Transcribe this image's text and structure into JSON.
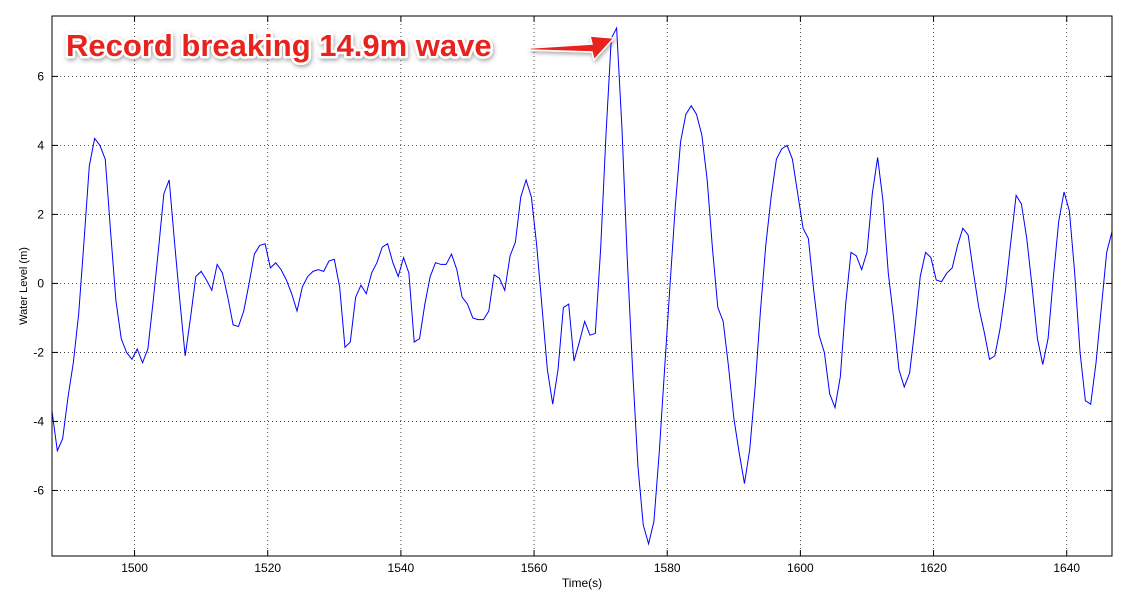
{
  "chart_data": {
    "type": "line",
    "annotation": "Record breaking 14.9m wave",
    "xlabel": "Time(s)",
    "ylabel": "Water Level (m)",
    "color": "#0000ff",
    "grid": true,
    "xlim": [
      1487.6,
      1646.8
    ],
    "ylim": [
      -7.9,
      7.75
    ],
    "xticks": [
      1500,
      1520,
      1540,
      1560,
      1580,
      1600,
      1620,
      1640
    ],
    "yticks": [
      -6,
      -4,
      -2,
      0,
      2,
      4,
      6
    ],
    "x": [
      1487.6,
      1488.4,
      1489.2,
      1490,
      1490.8,
      1491.6,
      1492.4,
      1493.2,
      1494,
      1494.8,
      1495.6,
      1496.4,
      1497.2,
      1498,
      1498.8,
      1499.6,
      1500.4,
      1501.2,
      1502,
      1502.8,
      1503.6,
      1504.4,
      1505.2,
      1506,
      1506.8,
      1507.6,
      1508.4,
      1509.2,
      1510,
      1510.8,
      1511.6,
      1512.4,
      1513.2,
      1514,
      1514.8,
      1515.6,
      1516.4,
      1517.2,
      1518,
      1518.8,
      1519.6,
      1520.4,
      1521.2,
      1522,
      1522.8,
      1523.6,
      1524.4,
      1525.2,
      1526,
      1526.8,
      1527.6,
      1528.4,
      1529.2,
      1530,
      1530.8,
      1531.6,
      1532.4,
      1533.2,
      1534,
      1534.8,
      1535.6,
      1536.4,
      1537.2,
      1538,
      1538.8,
      1539.6,
      1540.4,
      1541.2,
      1542,
      1542.8,
      1543.6,
      1544.4,
      1545.2,
      1546,
      1546.8,
      1547.6,
      1548.4,
      1549.2,
      1550,
      1550.8,
      1551.6,
      1552.4,
      1553.2,
      1554,
      1554.8,
      1555.6,
      1556.4,
      1557.2,
      1558,
      1558.8,
      1559.6,
      1560.4,
      1561.2,
      1562,
      1562.8,
      1563.6,
      1564.4,
      1565.2,
      1566,
      1566.8,
      1567.6,
      1568.4,
      1569.2,
      1570,
      1570.8,
      1571.6,
      1572.4,
      1573.2,
      1574,
      1574.8,
      1575.6,
      1576.4,
      1577.2,
      1578,
      1578.8,
      1579.6,
      1580.4,
      1581.2,
      1582,
      1582.8,
      1583.6,
      1584.4,
      1585.2,
      1586,
      1586.8,
      1587.6,
      1588.4,
      1589.2,
      1590,
      1590.8,
      1591.6,
      1592.4,
      1593.2,
      1594,
      1594.8,
      1595.6,
      1596.4,
      1597.2,
      1598,
      1598.8,
      1599.6,
      1600.4,
      1601.2,
      1602,
      1602.8,
      1603.6,
      1604.4,
      1605.2,
      1606,
      1606.8,
      1607.6,
      1608.4,
      1609.2,
      1610,
      1610.8,
      1611.6,
      1612.4,
      1613.2,
      1614,
      1614.8,
      1615.6,
      1616.4,
      1617.2,
      1618,
      1618.8,
      1619.6,
      1620.4,
      1621.2,
      1622,
      1622.8,
      1623.6,
      1624.4,
      1625.2,
      1626,
      1626.8,
      1627.6,
      1628.4,
      1629.2,
      1630,
      1630.8,
      1631.6,
      1632.4,
      1633.2,
      1634,
      1634.8,
      1635.6,
      1636.4,
      1637.2,
      1638,
      1638.8,
      1639.6,
      1640.4,
      1641.2,
      1642,
      1642.8,
      1643.6,
      1644.4,
      1645.2,
      1646,
      1646.8
    ],
    "values": [
      -3.7,
      -4.85,
      -4.5,
      -3.3,
      -2.3,
      -0.9,
      1.2,
      3.4,
      4.2,
      4.0,
      3.6,
      1.5,
      -0.5,
      -1.6,
      -2.0,
      -2.2,
      -1.9,
      -2.3,
      -1.9,
      -0.5,
      1.0,
      2.6,
      3.0,
      1.2,
      -0.5,
      -2.1,
      -1.0,
      0.2,
      0.35,
      0.1,
      -0.2,
      0.55,
      0.3,
      -0.4,
      -1.2,
      -1.25,
      -0.8,
      0.0,
      0.85,
      1.1,
      1.15,
      0.45,
      0.6,
      0.4,
      0.1,
      -0.3,
      -0.8,
      -0.1,
      0.2,
      0.35,
      0.4,
      0.35,
      0.65,
      0.7,
      -0.1,
      -1.85,
      -1.7,
      -0.4,
      -0.05,
      -0.3,
      0.3,
      0.6,
      1.05,
      1.15,
      0.6,
      0.2,
      0.75,
      0.3,
      -1.7,
      -1.6,
      -0.6,
      0.2,
      0.6,
      0.55,
      0.55,
      0.85,
      0.4,
      -0.4,
      -0.6,
      -1.0,
      -1.05,
      -1.05,
      -0.8,
      0.25,
      0.15,
      -0.2,
      0.8,
      1.2,
      2.5,
      3.0,
      2.5,
      1.1,
      -0.7,
      -2.5,
      -3.5,
      -2.5,
      -0.7,
      -0.6,
      -2.25,
      -1.7,
      -1.1,
      -1.5,
      -1.45,
      1.0,
      4.3,
      7.1,
      7.4,
      4.5,
      0.7,
      -2.5,
      -5.3,
      -7.0,
      -7.55,
      -6.9,
      -4.9,
      -2.5,
      -0.1,
      2.2,
      4.1,
      4.9,
      5.15,
      4.9,
      4.3,
      3.0,
      1.0,
      -0.7,
      -1.1,
      -2.4,
      -3.9,
      -4.9,
      -5.8,
      -4.8,
      -3.0,
      -0.8,
      1.1,
      2.5,
      3.6,
      3.9,
      4.0,
      3.6,
      2.6,
      1.6,
      1.3,
      -0.2,
      -1.5,
      -2.0,
      -3.2,
      -3.6,
      -2.7,
      -0.6,
      0.9,
      0.8,
      0.4,
      0.9,
      2.6,
      3.65,
      2.4,
      0.3,
      -1.0,
      -2.5,
      -3.0,
      -2.6,
      -1.3,
      0.2,
      0.9,
      0.75,
      0.1,
      0.05,
      0.3,
      0.45,
      1.1,
      1.6,
      1.4,
      0.3,
      -0.7,
      -1.4,
      -2.2,
      -2.1,
      -1.3,
      -0.2,
      1.2,
      2.55,
      2.3,
      1.3,
      -0.1,
      -1.6,
      -2.35,
      -1.6,
      0.2,
      1.8,
      2.65,
      2.1,
      0.3,
      -2.0,
      -3.4,
      -3.5,
      -2.3,
      -0.7,
      0.9,
      1.5
    ]
  }
}
